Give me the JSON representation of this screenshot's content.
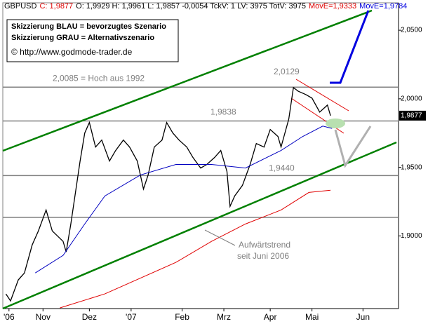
{
  "header": {
    "items": [
      {
        "text": "GBPUSD",
        "color": "#000000"
      },
      {
        "text": "C: 1,9877",
        "color": "#e00000"
      },
      {
        "text": "O: 1,9929 H: 1,9961 L: 1,9857 -0,0054 TckV: 1 LV: 3975 TotV: 3975",
        "color": "#000000"
      },
      {
        "text": "MovE=1,9333",
        "color": "#e00000"
      },
      {
        "text": "MovE=1,9784",
        "color": "#0000e0"
      }
    ]
  },
  "legend_box": {
    "lines": [
      "Skizzierung BLAU = bevorzugtes Szenario",
      "Skizzierung GRAU = Alternativszenario",
      "© http://www.godmode-trader.de"
    ]
  },
  "chart_data": {
    "type": "line",
    "xlim": [
      0,
      256
    ],
    "ylim": [
      1.847,
      2.07
    ],
    "xticks": [
      {
        "value": 4,
        "label": "'06"
      },
      {
        "value": 26,
        "label": "Nov"
      },
      {
        "value": 56,
        "label": "Dez"
      },
      {
        "value": 83,
        "label": "'07"
      },
      {
        "value": 116,
        "label": "Feb"
      },
      {
        "value": 143,
        "label": "Mrz"
      },
      {
        "value": 173,
        "label": "Apr"
      },
      {
        "value": 200,
        "label": "Mai"
      },
      {
        "value": 233,
        "label": "Jun"
      }
    ],
    "yticks": [
      {
        "value": 1.9,
        "label": "1,9000"
      },
      {
        "value": 1.95,
        "label": "1,9500"
      },
      {
        "value": 2.0,
        "label": "2,0000"
      },
      {
        "value": 2.05,
        "label": "2,0500"
      }
    ],
    "series": [
      {
        "color": "#000000",
        "x": [
          2,
          5,
          10,
          14,
          19,
          23,
          28,
          32,
          39,
          41,
          44,
          48,
          50,
          53,
          56,
          60,
          64,
          69,
          73,
          78,
          82,
          87,
          89,
          91,
          94,
          98,
          103,
          106,
          110,
          114,
          119,
          123,
          128,
          132,
          137,
          141,
          145,
          147,
          150,
          155,
          160,
          164,
          169,
          173,
          178,
          180,
          185,
          188,
          191,
          196,
          200,
          205,
          210,
          212
        ],
        "values": [
          1.8577,
          1.8526,
          1.8679,
          1.873,
          1.8934,
          1.9036,
          1.9189,
          1.9036,
          1.896,
          1.8883,
          1.9087,
          1.9393,
          1.9546,
          1.975,
          1.9827,
          1.9648,
          1.9699,
          1.9546,
          1.9623,
          1.9699,
          1.9648,
          1.9546,
          1.9444,
          1.9342,
          1.9444,
          1.9648,
          1.9699,
          1.9827,
          1.975,
          1.9699,
          1.9648,
          1.9572,
          1.9495,
          1.9521,
          1.9572,
          1.9623,
          1.947,
          1.9215,
          1.9291,
          1.9368,
          1.9521,
          1.9674,
          1.9648,
          1.9776,
          1.9725,
          1.9648,
          1.9852,
          2.0082,
          2.0056,
          2.0031,
          2.0005,
          1.9903,
          1.9954,
          1.9877
        ]
      },
      {
        "color": "#0000c0",
        "x": [
          21,
          39,
          53,
          66,
          89,
          112,
          135,
          157,
          180,
          194,
          207,
          213
        ],
        "values": [
          1.873,
          1.8858,
          1.9087,
          1.9291,
          1.9444,
          1.9521,
          1.9521,
          1.9495,
          1.9623,
          1.9725,
          1.9801,
          1.9784
        ]
      },
      {
        "color": "#e00000",
        "x": [
          37,
          66,
          112,
          135,
          157,
          180,
          198,
          212
        ],
        "values": [
          1.8475,
          1.8577,
          1.8807,
          1.896,
          1.9087,
          1.9189,
          1.9317,
          1.9333
        ]
      }
    ],
    "levels": [
      {
        "value": 2.0085,
        "label": "2,0085 = Hoch aus 1992"
      },
      {
        "value": 1.9838,
        "label": "1,9838"
      },
      {
        "value": 1.944,
        "label": "1,9440"
      }
    ],
    "peak_label": "2,0129",
    "trend_label": [
      "Aufwärtstrend",
      "seit Juni 2006"
    ],
    "last_price": {
      "value": 1.9877,
      "label": "1,9877"
    }
  }
}
